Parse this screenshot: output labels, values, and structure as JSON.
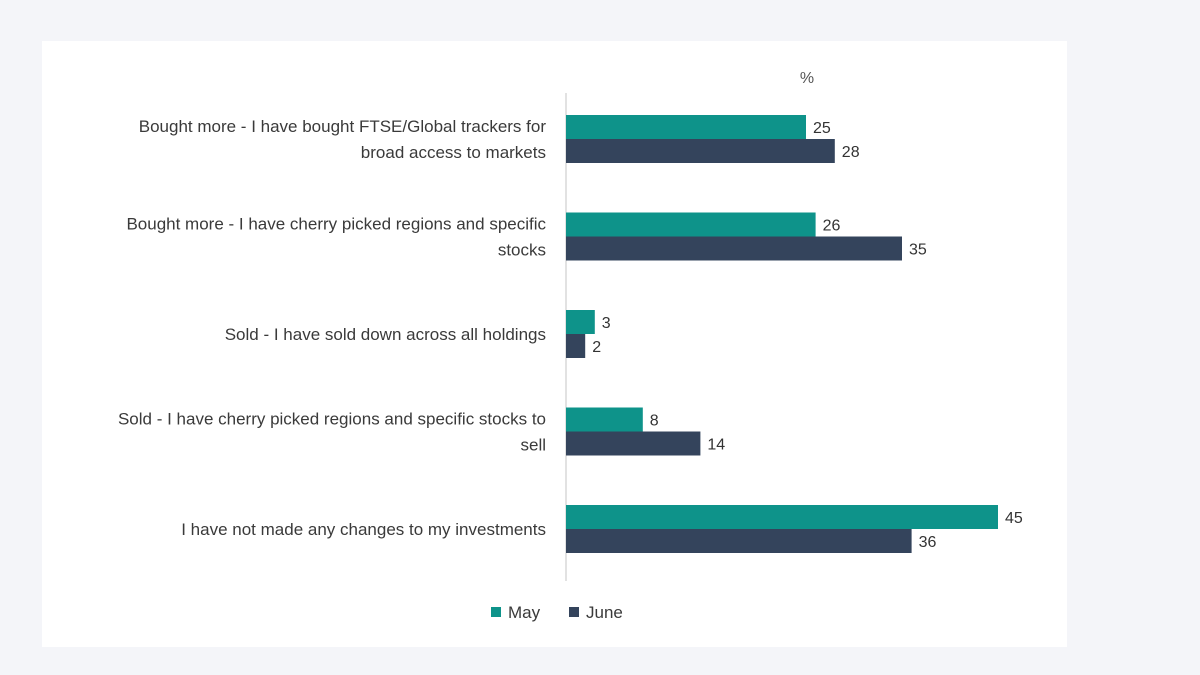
{
  "chart_data": {
    "type": "bar",
    "orientation": "horizontal",
    "unit_label": "%",
    "categories": [
      [
        "Bought more - I have bought FTSE/Global trackers for",
        "broad access to markets"
      ],
      [
        "Bought more - I have cherry picked regions and specific",
        "stocks"
      ],
      [
        "Sold - I have sold down across all holdings"
      ],
      [
        "Sold - I have cherry picked regions and specific stocks to",
        "sell"
      ],
      [
        "I have not made any changes to my investments"
      ]
    ],
    "series": [
      {
        "name": "May",
        "color": "#0e938a",
        "values": [
          25,
          26,
          3,
          8,
          45
        ]
      },
      {
        "name": "June",
        "color": "#34445c",
        "values": [
          28,
          35,
          2,
          14,
          36
        ]
      }
    ],
    "xlim": [
      0,
      48
    ],
    "grid": false,
    "legend_position": "bottom"
  }
}
